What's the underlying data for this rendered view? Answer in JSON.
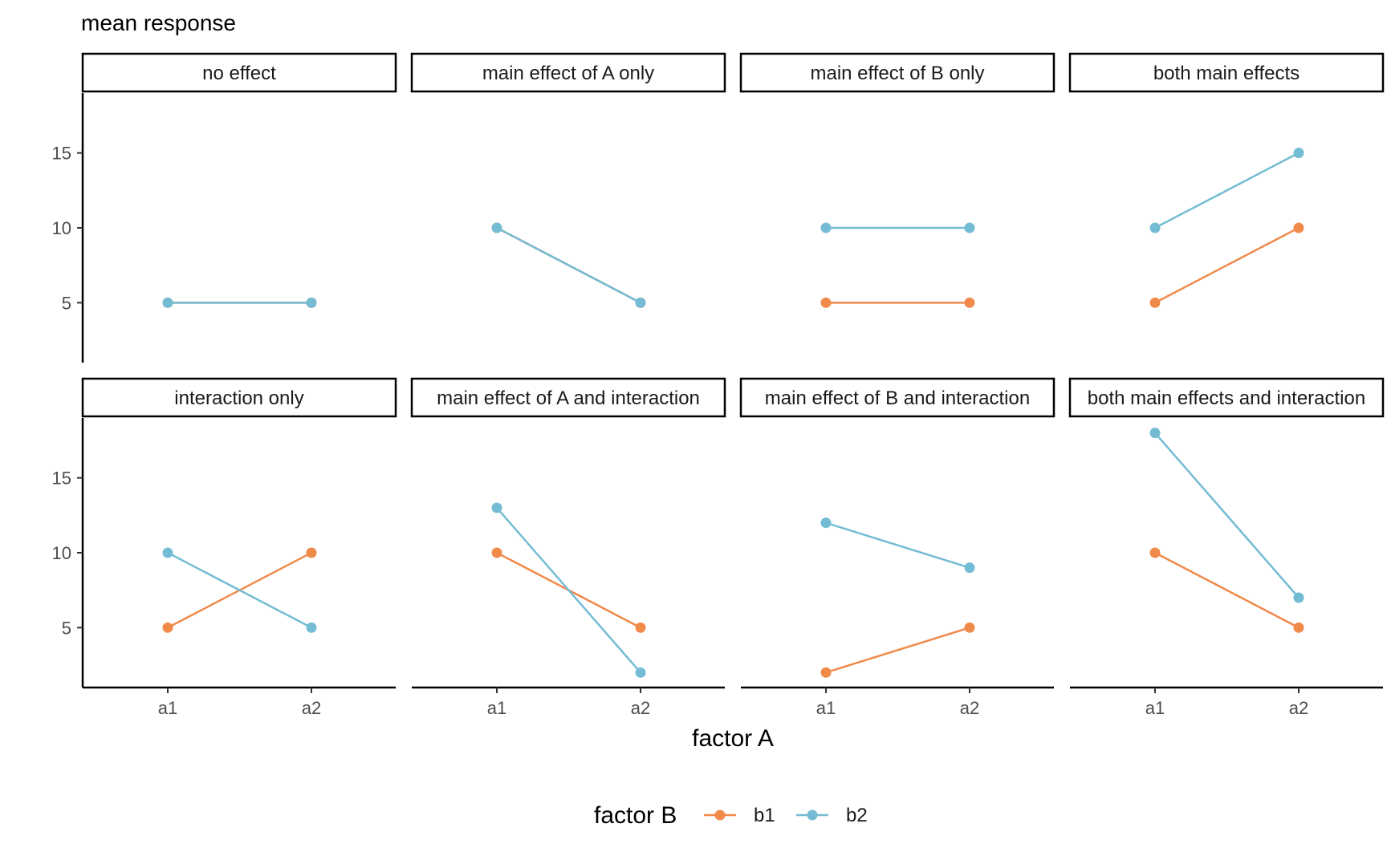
{
  "chart_data": {
    "type": "line",
    "title": "mean response",
    "xlabel": "factor A",
    "ylabel": "",
    "x": [
      "a1",
      "a2"
    ],
    "y_ticks": [
      5,
      10,
      15
    ],
    "ylim": [
      1,
      19
    ],
    "grid": false,
    "legend": {
      "title": "factor B",
      "position": "bottom",
      "entries": [
        {
          "name": "b1",
          "color": "#F08A4B"
        },
        {
          "name": "b2",
          "color": "#74BCD4"
        }
      ]
    },
    "panels": [
      {
        "title": "no effect",
        "series": [
          {
            "name": "b1",
            "values": [
              5,
              5
            ]
          },
          {
            "name": "b2",
            "values": [
              5,
              5
            ]
          }
        ]
      },
      {
        "title": "main effect of A only",
        "series": [
          {
            "name": "b1",
            "values": [
              10,
              5
            ]
          },
          {
            "name": "b2",
            "values": [
              10,
              5
            ]
          }
        ]
      },
      {
        "title": "main effect of B only",
        "series": [
          {
            "name": "b1",
            "values": [
              5,
              5
            ]
          },
          {
            "name": "b2",
            "values": [
              10,
              10
            ]
          }
        ]
      },
      {
        "title": "both main effects",
        "series": [
          {
            "name": "b1",
            "values": [
              5,
              10
            ]
          },
          {
            "name": "b2",
            "values": [
              10,
              15
            ]
          }
        ]
      },
      {
        "title": "interaction only",
        "series": [
          {
            "name": "b1",
            "values": [
              5,
              10
            ]
          },
          {
            "name": "b2",
            "values": [
              10,
              5
            ]
          }
        ]
      },
      {
        "title": "main effect of A and interaction",
        "series": [
          {
            "name": "b1",
            "values": [
              10,
              5
            ]
          },
          {
            "name": "b2",
            "values": [
              13,
              2
            ]
          }
        ]
      },
      {
        "title": "main effect of B and interaction",
        "series": [
          {
            "name": "b1",
            "values": [
              2,
              5
            ]
          },
          {
            "name": "b2",
            "values": [
              12,
              9
            ]
          }
        ]
      },
      {
        "title": "both main effects and interaction",
        "series": [
          {
            "name": "b1",
            "values": [
              10,
              5
            ]
          },
          {
            "name": "b2",
            "values": [
              18,
              7
            ]
          }
        ]
      }
    ]
  }
}
